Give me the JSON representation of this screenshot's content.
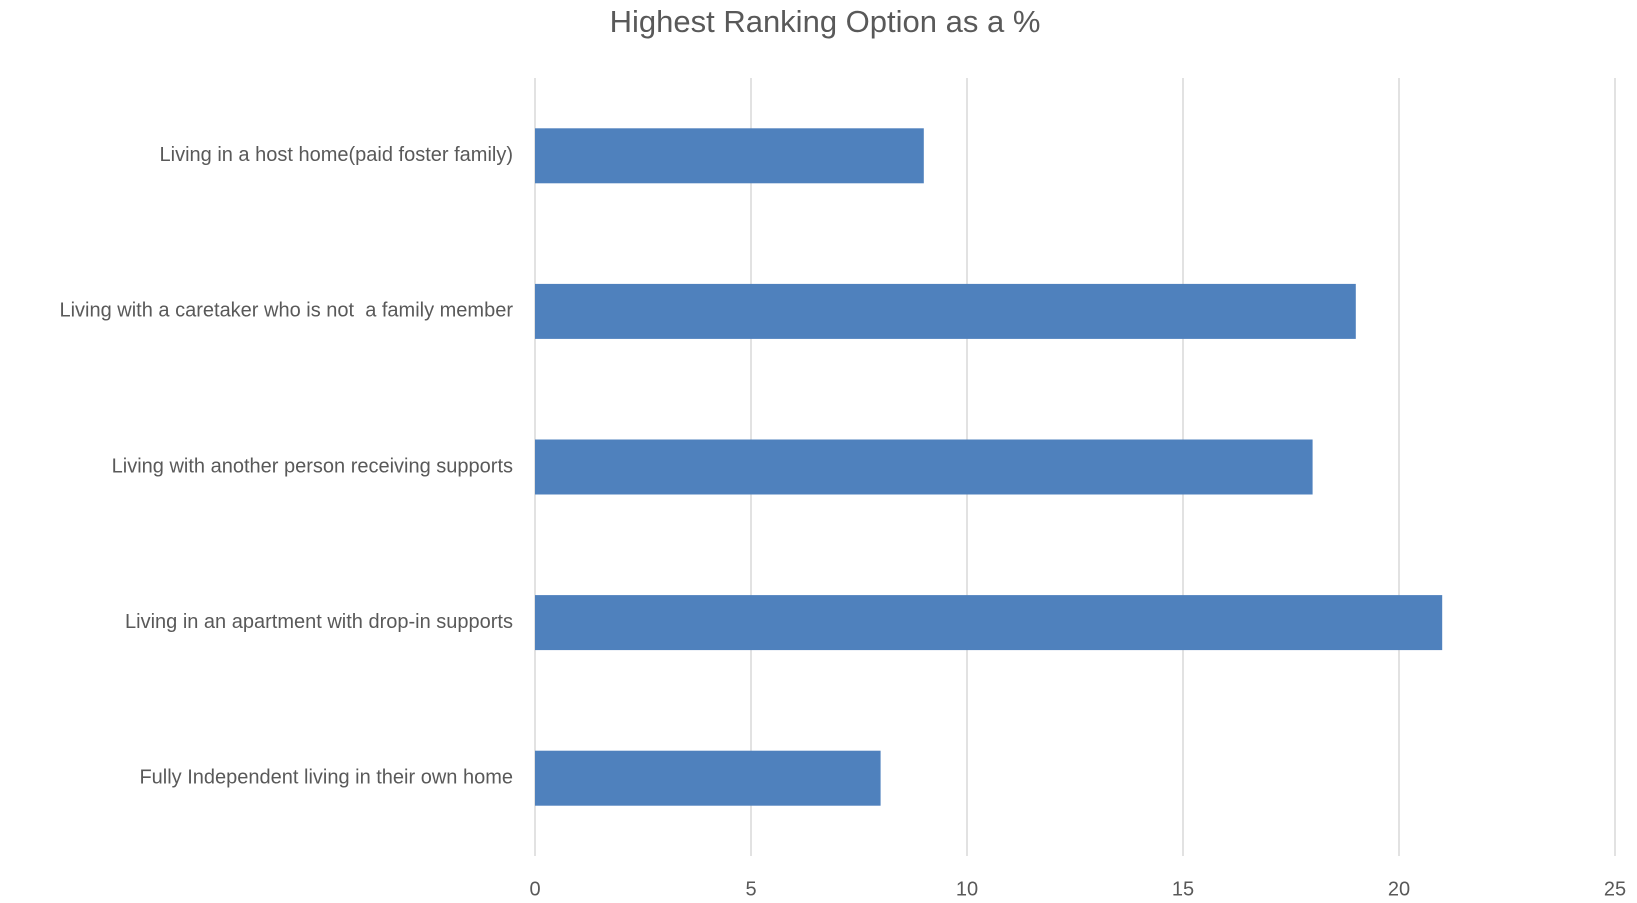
{
  "chart_data": {
    "type": "bar",
    "orientation": "horizontal",
    "title": "Highest Ranking Option as a %",
    "categories": [
      "Living in a host home(paid foster family)",
      "Living with a caretaker who is not  a family member",
      "Living with another person receiving supports",
      "Living in an apartment with drop-in supports",
      "Fully Independent living in their own home"
    ],
    "values": [
      9,
      19,
      18,
      21,
      8
    ],
    "color": "#4f81bd",
    "xlim": [
      0,
      25
    ],
    "xticks": [
      0,
      5,
      10,
      15,
      20,
      25
    ],
    "grid": true
  }
}
